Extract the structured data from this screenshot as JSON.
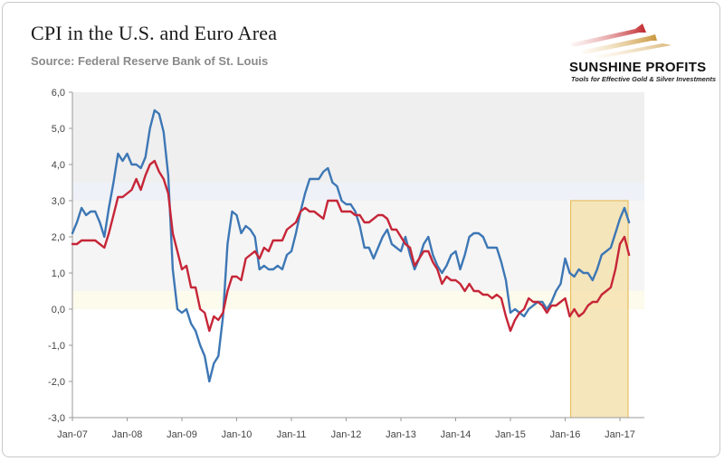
{
  "title": "CPI in the U.S. and Euro Area",
  "subtitle": "Source: Federal Reserve Bank of St. Louis",
  "logo": {
    "name": "SUNSHINE PROFITS",
    "tagline": "Tools for Effective Gold & Silver Investments"
  },
  "colors": {
    "us": "#3d77b5",
    "euro": "#c62638",
    "highlight": "#f5e2b0",
    "highlight_border": "#e6b84a"
  },
  "chart_data": {
    "type": "line",
    "ylim": [
      -3.0,
      6.0
    ],
    "y_ticks": [
      "6,0",
      "5,0",
      "4,0",
      "3,0",
      "2,0",
      "1,0",
      "0,0",
      "-1,0",
      "-2,0",
      "-3,0"
    ],
    "x_ticks": [
      "Jan-07",
      "Jan-08",
      "Jan-09",
      "Jan-10",
      "Jan-11",
      "Jan-12",
      "Jan-13",
      "Jan-14",
      "Jan-15",
      "Jan-16",
      "Jan-17"
    ],
    "x_range": [
      "Jan-07",
      "Feb-17"
    ],
    "grid": false,
    "highlight": {
      "x_from": "Mar-16",
      "x_to": "Feb-17",
      "y_from": -3.0,
      "y_to": 3.0
    },
    "series": [
      {
        "key": "us",
        "values": [
          2.1,
          2.4,
          2.8,
          2.6,
          2.7,
          2.7,
          2.4,
          2.0,
          2.8,
          3.5,
          4.3,
          4.1,
          4.3,
          4.0,
          4.0,
          3.9,
          4.2,
          5.0,
          5.5,
          5.4,
          4.9,
          3.7,
          1.1,
          -0.0,
          -0.1,
          0.0,
          -0.4,
          -0.6,
          -1.0,
          -1.3,
          -2.0,
          -1.5,
          -1.3,
          -0.2,
          1.8,
          2.7,
          2.6,
          2.1,
          2.3,
          2.2,
          2.0,
          1.1,
          1.2,
          1.1,
          1.1,
          1.2,
          1.1,
          1.5,
          1.6,
          2.1,
          2.7,
          3.2,
          3.6,
          3.6,
          3.6,
          3.8,
          3.9,
          3.5,
          3.4,
          3.0,
          2.9,
          2.9,
          2.7,
          2.3,
          1.7,
          1.7,
          1.4,
          1.7,
          2.0,
          2.2,
          1.8,
          1.7,
          1.6,
          2.0,
          1.5,
          1.1,
          1.4,
          1.8,
          2.0,
          1.5,
          1.2,
          1.0,
          1.2,
          1.5,
          1.6,
          1.1,
          1.5,
          2.0,
          2.1,
          2.1,
          2.0,
          1.7,
          1.7,
          1.7,
          1.3,
          0.8,
          -0.1,
          0.0,
          -0.1,
          -0.2,
          -0.0,
          0.1,
          0.2,
          0.2,
          0.0,
          0.2,
          0.5,
          0.7,
          1.4,
          1.0,
          0.9,
          1.1,
          1.0,
          1.0,
          0.8,
          1.1,
          1.5,
          1.6,
          1.7,
          2.1,
          2.5,
          2.8,
          2.4
        ]
      },
      {
        "key": "euro",
        "values": [
          1.8,
          1.8,
          1.9,
          1.9,
          1.9,
          1.9,
          1.8,
          1.7,
          2.1,
          2.6,
          3.1,
          3.1,
          3.2,
          3.3,
          3.6,
          3.3,
          3.7,
          4.0,
          4.1,
          3.8,
          3.6,
          3.2,
          2.1,
          1.6,
          1.1,
          1.2,
          0.6,
          0.6,
          0.0,
          -0.1,
          -0.6,
          -0.2,
          -0.3,
          -0.1,
          0.5,
          0.9,
          0.9,
          0.8,
          1.4,
          1.5,
          1.6,
          1.4,
          1.7,
          1.6,
          1.9,
          1.9,
          1.9,
          2.2,
          2.3,
          2.4,
          2.7,
          2.8,
          2.7,
          2.7,
          2.6,
          2.5,
          3.0,
          3.0,
          3.0,
          2.7,
          2.7,
          2.7,
          2.6,
          2.6,
          2.4,
          2.4,
          2.5,
          2.6,
          2.6,
          2.5,
          2.2,
          2.2,
          2.0,
          1.8,
          1.7,
          1.2,
          1.4,
          1.6,
          1.6,
          1.3,
          1.1,
          0.7,
          0.9,
          0.8,
          0.8,
          0.7,
          0.5,
          0.7,
          0.5,
          0.5,
          0.4,
          0.4,
          0.3,
          0.4,
          0.3,
          -0.2,
          -0.6,
          -0.3,
          -0.1,
          0.0,
          0.3,
          0.2,
          0.2,
          0.1,
          -0.1,
          0.1,
          0.1,
          0.2,
          0.3,
          -0.2,
          0.0,
          -0.2,
          -0.1,
          0.1,
          0.2,
          0.2,
          0.4,
          0.5,
          0.6,
          1.1,
          1.8,
          2.0,
          1.5
        ]
      }
    ]
  }
}
